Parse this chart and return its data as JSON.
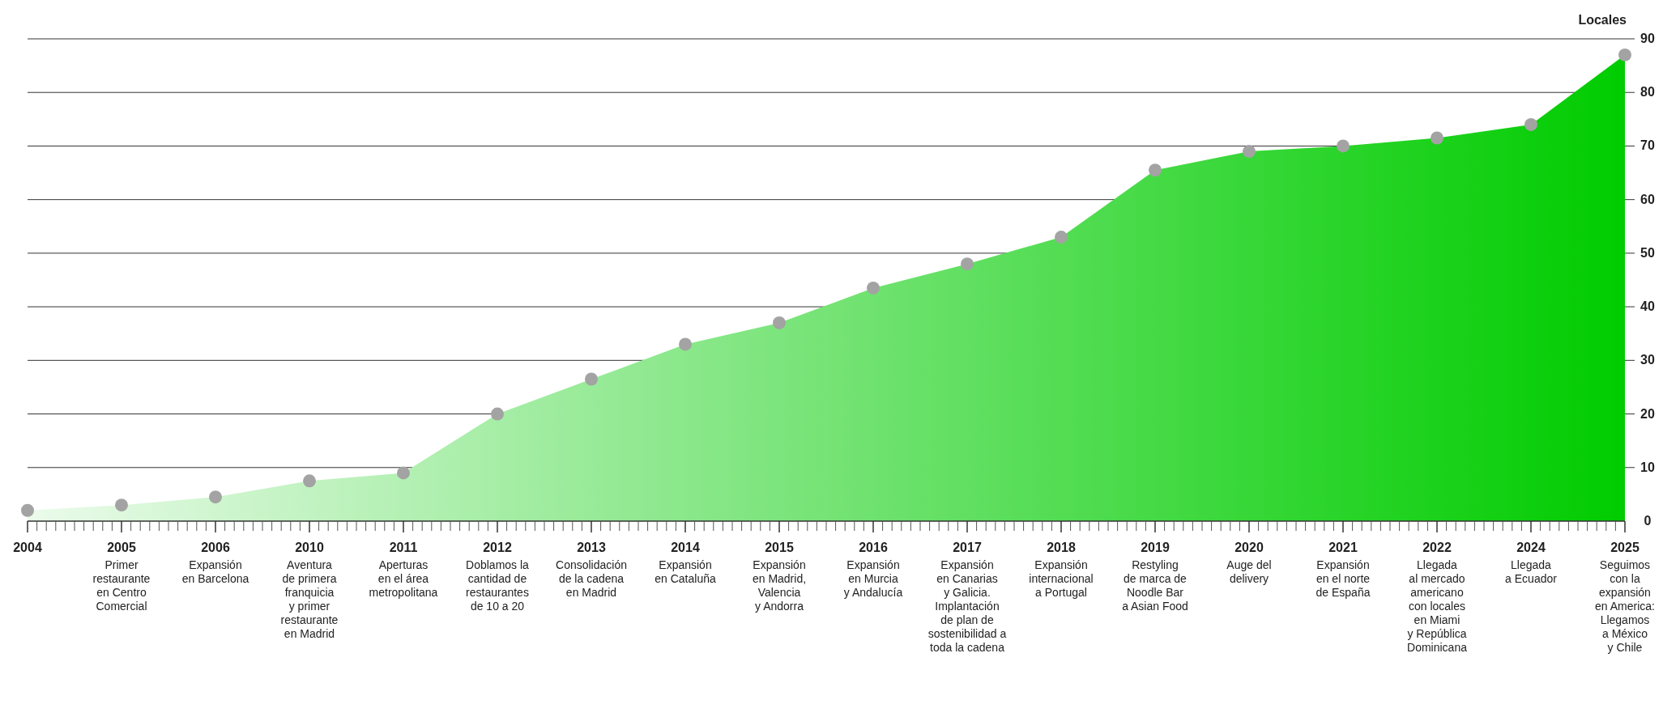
{
  "chart_data": {
    "type": "area",
    "ylabel": "Locales",
    "categories": [
      "2004",
      "2005\nPrimer\nrestaurante\nen Centro\nComercial",
      "2006\nExpansión\nen Barcelona",
      "2010\nAventura\nde primera\nfranquicia\ny primer\nrestaurante\nen Madrid",
      "2011\nAperturas\nen el área\nmetropolitana",
      "2012\nDoblamos la\ncantidad de\nrestaurantes\nde 10 a 20",
      "2013\nConsolidación\nde la cadena\nen Madrid",
      "2014\nExpansión\nen Cataluña",
      "2015\nExpansión\nen Madrid,\nValencia\ny Andorra",
      "2016\nExpansión\nen Murcia\ny Andalucía",
      "2017\nExpansión\nen Canarias\ny Galicia.\nImplantación\nde plan de\nsostenibilidad a\ntoda la cadena",
      "2018\nExpansión\ninternacional\na Portugal",
      "2019\nRestyling\nde marca de\nNoodle Bar\na Asian Food",
      "2020\nAuge del\ndelivery",
      "2021\nExpansión\nen el norte\nde España",
      "2022\nLlegada\nal mercado\namericano\ncon locales\nen Miami\ny República\nDominicana",
      "2024\nLlegada\na Ecuador",
      "2025\nSeguimos\ncon la\nexpansión\nen America:\nLlegamos\na México\ny Chile"
    ],
    "series": [
      {
        "color": "#00cc00",
        "values": [
          2,
          3,
          4.5,
          7.5,
          9,
          20,
          26.5,
          33,
          37,
          43.5,
          48,
          53,
          65.5,
          69,
          70,
          71.5,
          74,
          87
        ]
      }
    ],
    "ylim": [
      0,
      90
    ],
    "yticks": [
      0,
      10,
      20,
      30,
      40,
      50,
      60,
      70,
      80,
      90
    ],
    "grid": "y",
    "marker": "circle"
  }
}
